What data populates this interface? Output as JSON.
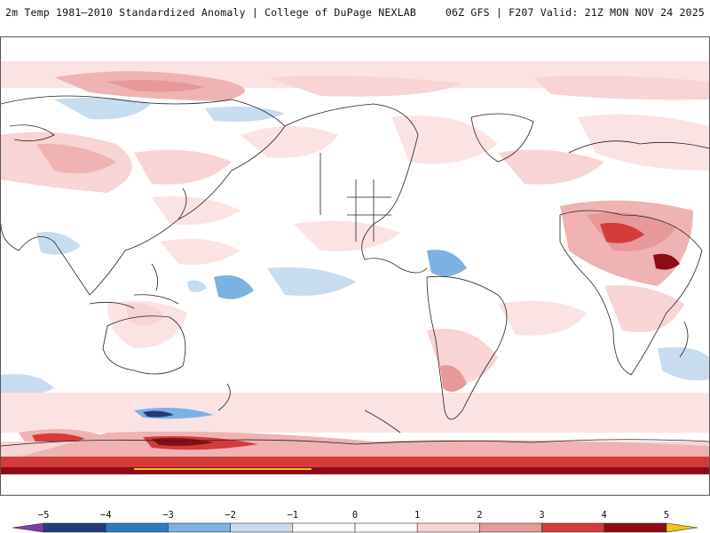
{
  "header": {
    "title_left": "2m Temp 1981–2010 Standardized Anomaly | College of DuPage NEXLAB",
    "title_right": "06Z GFS | F207 Valid: 21Z MON NOV 24 2025"
  },
  "map": {
    "projection": "cylindrical, Pacific-centered",
    "field": "2m temperature standardized anomaly"
  },
  "colorbar": {
    "min": -5.5,
    "max": 5.5,
    "labels": [
      "−5",
      "−4",
      "−3",
      "−2",
      "−1",
      "0",
      "1",
      "2",
      "3",
      "4",
      "5"
    ],
    "values": [
      -5,
      -4,
      -3,
      -2,
      -1,
      0,
      1,
      2,
      3,
      4,
      5
    ],
    "bins": [
      {
        "from": -5.5,
        "to": -5,
        "color": "#7a3fa6"
      },
      {
        "from": -5,
        "to": -4,
        "color": "#26397a"
      },
      {
        "from": -4,
        "to": -3,
        "color": "#2f79c2"
      },
      {
        "from": -3,
        "to": -2,
        "color": "#7cb2e2"
      },
      {
        "from": -2,
        "to": -1,
        "color": "#c8dcf0"
      },
      {
        "from": -1,
        "to": 0,
        "color": "#ffffff"
      },
      {
        "from": 0,
        "to": 1,
        "color": "#ffffff"
      },
      {
        "from": 1,
        "to": 2,
        "color": "#f8d4d4"
      },
      {
        "from": 2,
        "to": 3,
        "color": "#e79898"
      },
      {
        "from": 3,
        "to": 4,
        "color": "#d43b3b"
      },
      {
        "from": 4,
        "to": 5,
        "color": "#8e0a14"
      },
      {
        "from": 5,
        "to": 5.5,
        "color": "#f0c419"
      }
    ]
  }
}
